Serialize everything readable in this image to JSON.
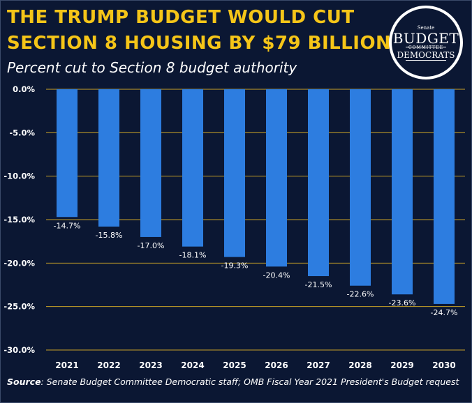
{
  "title_line1": "THE TRUMP BUDGET WOULD CUT",
  "title_line2": "SECTION 8 HOUSING BY $79 BILLION",
  "subtitle": "Percent cut to Section 8 budget authority",
  "logo": {
    "line1": "Senate",
    "line2": "BUDGET",
    "line3": "COMMITTEE",
    "line4": "DEMOCRATS"
  },
  "source_label": "Source",
  "source_text": ": Senate Budget Committee Democratic staff; OMB Fiscal Year 2021 President's Budget request",
  "colors": {
    "background": "#0b1733",
    "bar": "#2d7de0",
    "grid": "#c9a227",
    "title": "#f5c518",
    "text": "#ffffff"
  },
  "chart_data": {
    "type": "bar",
    "title": "",
    "xlabel": "",
    "ylabel": "",
    "categories": [
      "2021",
      "2022",
      "2023",
      "2024",
      "2025",
      "2026",
      "2027",
      "2028",
      "2029",
      "2030"
    ],
    "values": [
      -14.7,
      -15.8,
      -17.0,
      -18.1,
      -19.3,
      -20.4,
      -21.5,
      -22.6,
      -23.6,
      -24.7
    ],
    "data_labels": [
      "-14.7%",
      "-15.8%",
      "-17.0%",
      "-18.1%",
      "-19.3%",
      "-20.4%",
      "-21.5%",
      "-22.6%",
      "-23.6%",
      "-24.7%"
    ],
    "yticks": [
      0,
      -5,
      -10,
      -15,
      -20,
      -25,
      -30
    ],
    "ytick_labels": [
      "0.0%",
      "-5.0%",
      "-10.0%",
      "-15.0%",
      "-20.0%",
      "-25.0%",
      "-30.0%"
    ],
    "ylim": [
      -30,
      0
    ],
    "grid": true,
    "legend": "none"
  }
}
